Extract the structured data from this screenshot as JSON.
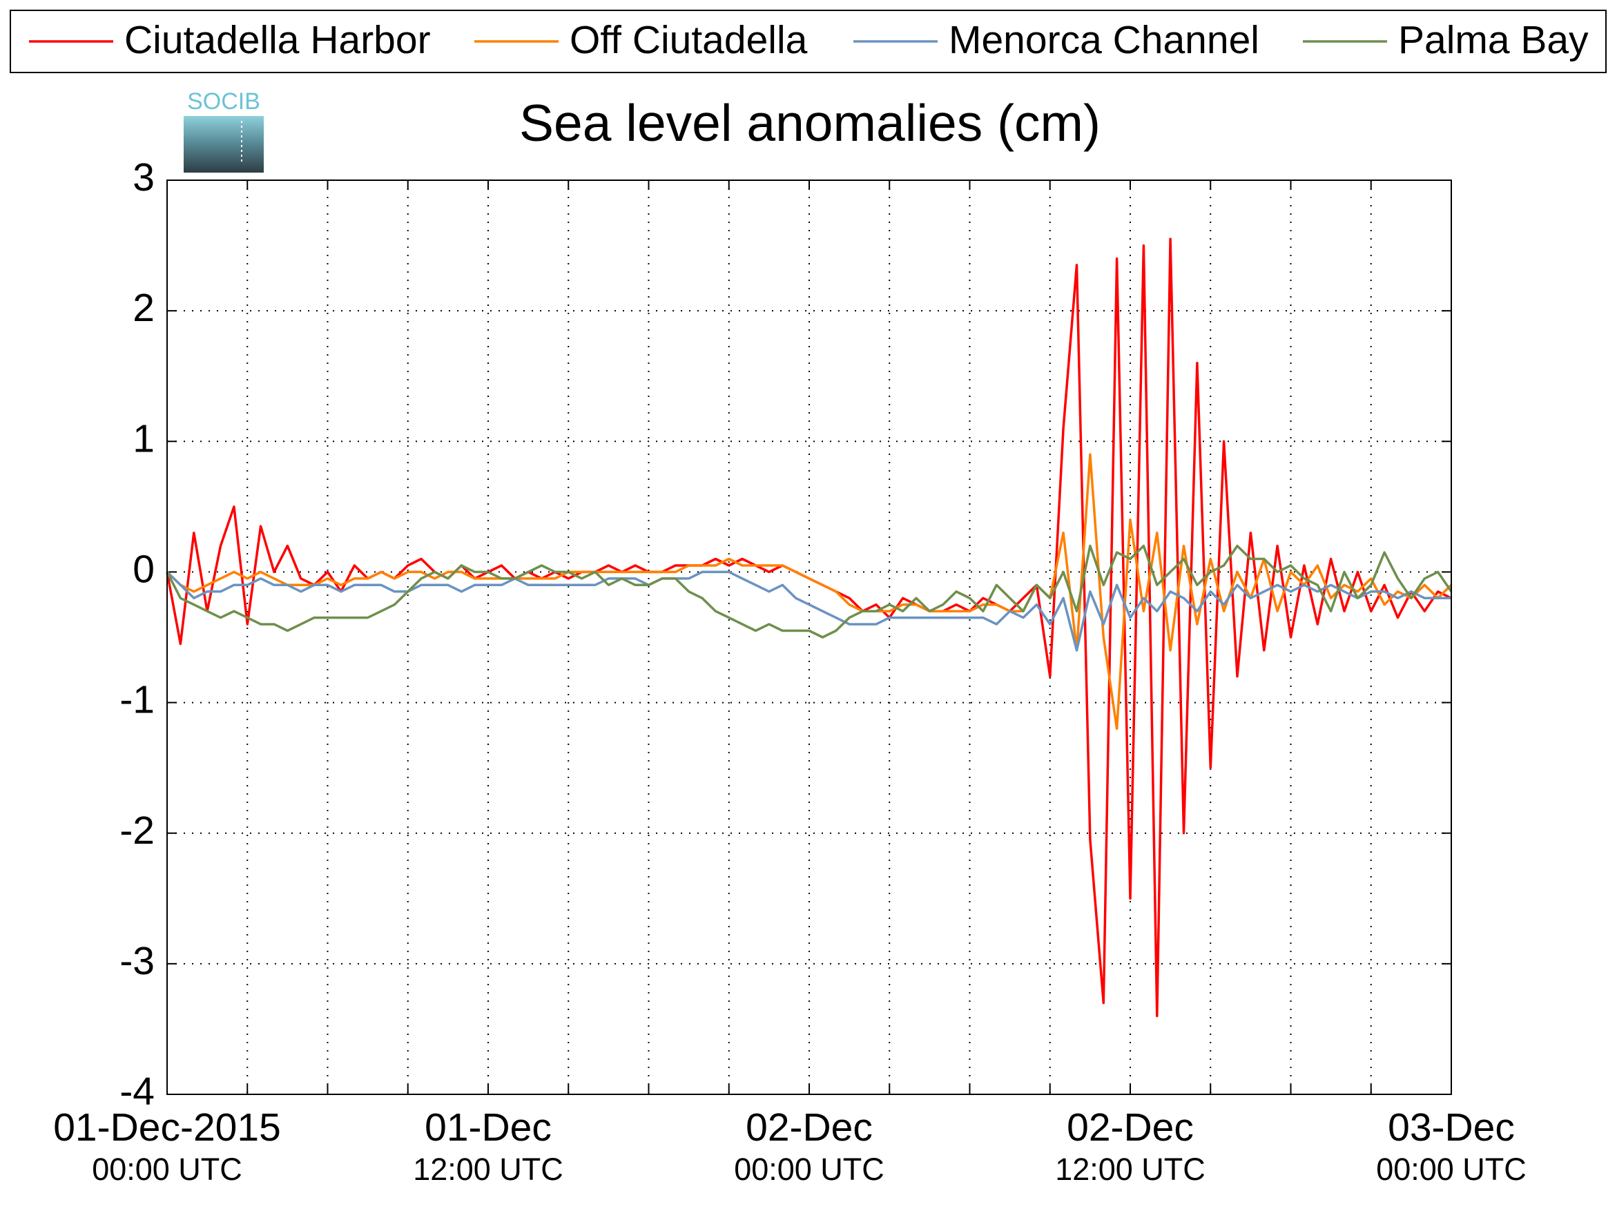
{
  "chart_data": {
    "type": "line",
    "title": "Sea level anomalies (cm)",
    "logo_text": "SOCIB",
    "legend": "top",
    "grid": true,
    "x": [
      0,
      0.5,
      1,
      1.5,
      2,
      2.5,
      3,
      3.5,
      4,
      4.5,
      5,
      5.5,
      6,
      6.5,
      7,
      7.5,
      8,
      8.5,
      9,
      9.5,
      10,
      10.5,
      11,
      11.5,
      12,
      12.5,
      13,
      13.5,
      14,
      14.5,
      15,
      15.5,
      16,
      16.5,
      17,
      17.5,
      18,
      18.5,
      19,
      19.5,
      20,
      20.5,
      21,
      21.5,
      22,
      22.5,
      23,
      23.5,
      24,
      24.5,
      25,
      25.5,
      26,
      26.5,
      27,
      27.5,
      28,
      28.5,
      29,
      29.5,
      30,
      30.5,
      31,
      31.5,
      32,
      32.5,
      33,
      33.5,
      34,
      34.5,
      35,
      35.5,
      36,
      36.5,
      37,
      37.5,
      38,
      38.5,
      39,
      39.5,
      40,
      40.5,
      41,
      41.5,
      42,
      42.5,
      43,
      43.5,
      44,
      44.5,
      45,
      45.5,
      46,
      46.5,
      47,
      47.5,
      48
    ],
    "xlim": [
      0,
      48
    ],
    "xticks": [
      {
        "value": 0,
        "label": "01-Dec-2015",
        "sublabel": "00:00 UTC"
      },
      {
        "value": 12,
        "label": "01-Dec",
        "sublabel": "12:00 UTC"
      },
      {
        "value": 24,
        "label": "02-Dec",
        "sublabel": "00:00 UTC"
      },
      {
        "value": 36,
        "label": "02-Dec",
        "sublabel": "12:00 UTC"
      },
      {
        "value": 48,
        "label": "03-Dec",
        "sublabel": "00:00 UTC"
      }
    ],
    "xminorticks": [
      3,
      6,
      9,
      15,
      18,
      21,
      27,
      30,
      33,
      39,
      42,
      45
    ],
    "ylim": [
      -4,
      3
    ],
    "yticks": [
      -4,
      -3,
      -2,
      -1,
      0,
      1,
      2,
      3
    ],
    "series": [
      {
        "name": "Ciutadella Harbor",
        "color": "#ff0000",
        "values": [
          0.0,
          -0.55,
          0.3,
          -0.3,
          0.2,
          0.5,
          -0.4,
          0.35,
          0.0,
          0.2,
          -0.05,
          -0.1,
          0.0,
          -0.15,
          0.05,
          -0.05,
          0.0,
          -0.05,
          0.05,
          0.1,
          0.0,
          -0.05,
          0.05,
          -0.05,
          0.0,
          0.05,
          -0.05,
          0.0,
          -0.05,
          0.0,
          -0.05,
          0.0,
          0.0,
          0.05,
          0.0,
          0.05,
          0.0,
          0.0,
          0.05,
          0.05,
          0.05,
          0.1,
          0.05,
          0.1,
          0.05,
          0.0,
          0.05,
          0.0,
          -0.05,
          -0.1,
          -0.15,
          -0.2,
          -0.3,
          -0.25,
          -0.35,
          -0.2,
          -0.25,
          -0.3,
          -0.3,
          -0.25,
          -0.3,
          -0.2,
          -0.25,
          -0.3,
          -0.2,
          -0.1,
          -0.8,
          1.1,
          2.35,
          -2.05,
          -3.3,
          2.4,
          -2.5,
          2.5,
          -3.4,
          2.55,
          -2.0,
          1.6,
          -1.5,
          1.0,
          -0.8,
          0.3,
          -0.6,
          0.2,
          -0.5,
          0.05,
          -0.4,
          0.1,
          -0.3,
          0.0,
          -0.3,
          -0.1,
          -0.35,
          -0.15,
          -0.3,
          -0.15,
          -0.2
        ]
      },
      {
        "name": "Off Ciutadella",
        "color": "#ff8000",
        "values": [
          0.0,
          -0.1,
          -0.15,
          -0.1,
          -0.05,
          0.0,
          -0.05,
          0.0,
          -0.05,
          -0.1,
          -0.1,
          -0.1,
          -0.05,
          -0.1,
          -0.05,
          -0.05,
          0.0,
          -0.05,
          0.0,
          0.0,
          -0.05,
          0.0,
          0.0,
          -0.05,
          -0.05,
          -0.05,
          -0.05,
          -0.05,
          -0.05,
          -0.05,
          0.0,
          0.0,
          0.0,
          0.0,
          0.0,
          0.0,
          0.0,
          0.0,
          0.0,
          0.05,
          0.05,
          0.05,
          0.1,
          0.05,
          0.05,
          0.05,
          0.05,
          0.0,
          -0.05,
          -0.1,
          -0.15,
          -0.25,
          -0.3,
          -0.3,
          -0.3,
          -0.25,
          -0.25,
          -0.3,
          -0.3,
          -0.3,
          -0.3,
          -0.25,
          -0.25,
          -0.3,
          -0.3,
          -0.1,
          -0.2,
          0.3,
          -0.6,
          0.9,
          -0.5,
          -1.2,
          0.4,
          -0.3,
          0.3,
          -0.6,
          0.2,
          -0.4,
          0.1,
          -0.3,
          0.0,
          -0.2,
          0.1,
          -0.3,
          0.0,
          -0.1,
          0.05,
          -0.2,
          -0.1,
          -0.15,
          -0.05,
          -0.25,
          -0.15,
          -0.2,
          -0.1,
          -0.2,
          -0.1
        ]
      },
      {
        "name": "Menorca Channel",
        "color": "#6a93c0",
        "values": [
          0.0,
          -0.1,
          -0.2,
          -0.15,
          -0.15,
          -0.1,
          -0.1,
          -0.05,
          -0.1,
          -0.1,
          -0.15,
          -0.1,
          -0.1,
          -0.15,
          -0.1,
          -0.1,
          -0.1,
          -0.15,
          -0.15,
          -0.1,
          -0.1,
          -0.1,
          -0.15,
          -0.1,
          -0.1,
          -0.1,
          -0.05,
          -0.1,
          -0.1,
          -0.1,
          -0.1,
          -0.1,
          -0.1,
          -0.05,
          -0.05,
          -0.05,
          -0.1,
          -0.05,
          -0.05,
          -0.05,
          0.0,
          0.0,
          0.0,
          -0.05,
          -0.1,
          -0.15,
          -0.1,
          -0.2,
          -0.25,
          -0.3,
          -0.35,
          -0.4,
          -0.4,
          -0.4,
          -0.35,
          -0.35,
          -0.35,
          -0.35,
          -0.35,
          -0.35,
          -0.35,
          -0.35,
          -0.4,
          -0.3,
          -0.35,
          -0.25,
          -0.4,
          -0.2,
          -0.6,
          -0.15,
          -0.4,
          -0.1,
          -0.35,
          -0.2,
          -0.3,
          -0.15,
          -0.2,
          -0.3,
          -0.15,
          -0.25,
          -0.1,
          -0.2,
          -0.15,
          -0.1,
          -0.15,
          -0.1,
          -0.15,
          -0.1,
          -0.15,
          -0.2,
          -0.15,
          -0.15,
          -0.2,
          -0.15,
          -0.2,
          -0.2,
          -0.2
        ]
      },
      {
        "name": "Palma Bay",
        "color": "#6f8f4c",
        "values": [
          0.0,
          -0.2,
          -0.25,
          -0.3,
          -0.35,
          -0.3,
          -0.35,
          -0.4,
          -0.4,
          -0.45,
          -0.4,
          -0.35,
          -0.35,
          -0.35,
          -0.35,
          -0.35,
          -0.3,
          -0.25,
          -0.15,
          -0.05,
          0.0,
          -0.05,
          0.05,
          0.0,
          0.0,
          -0.05,
          -0.05,
          0.0,
          0.05,
          0.0,
          0.0,
          -0.05,
          0.0,
          -0.1,
          -0.05,
          -0.1,
          -0.1,
          -0.05,
          -0.05,
          -0.15,
          -0.2,
          -0.3,
          -0.35,
          -0.4,
          -0.45,
          -0.4,
          -0.45,
          -0.45,
          -0.45,
          -0.5,
          -0.45,
          -0.35,
          -0.3,
          -0.3,
          -0.25,
          -0.3,
          -0.2,
          -0.3,
          -0.25,
          -0.15,
          -0.2,
          -0.3,
          -0.1,
          -0.2,
          -0.3,
          -0.1,
          -0.2,
          0.0,
          -0.3,
          0.2,
          -0.1,
          0.15,
          0.1,
          0.2,
          -0.1,
          0.0,
          0.1,
          -0.1,
          0.0,
          0.05,
          0.2,
          0.1,
          0.1,
          0.0,
          0.05,
          -0.05,
          -0.1,
          -0.3,
          0.0,
          -0.2,
          -0.1,
          0.15,
          -0.05,
          -0.2,
          -0.05,
          0.0,
          -0.15
        ]
      }
    ]
  }
}
